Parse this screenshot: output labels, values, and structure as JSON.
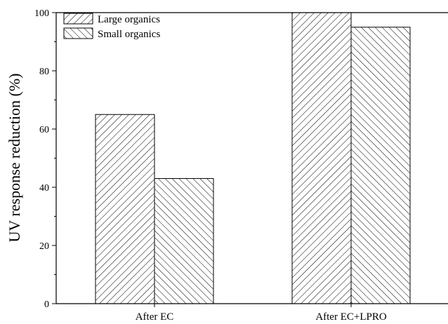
{
  "chart_data": {
    "type": "bar",
    "title": "",
    "xlabel": "",
    "ylabel": "UV response reduction (%)",
    "categories": [
      "After EC",
      "After EC+LPRO"
    ],
    "series": [
      {
        "name": "Large organics",
        "values": [
          65,
          100
        ],
        "hatch": "forward-diagonal"
      },
      {
        "name": "Small organics",
        "values": [
          43,
          95
        ],
        "hatch": "backward-diagonal"
      }
    ],
    "ylim": [
      0,
      100
    ],
    "yticks": [
      0,
      20,
      40,
      60,
      80,
      100
    ],
    "grid": false,
    "legend": "top-left",
    "colors": {
      "bar_fill": "#ffffff",
      "hatch": "#000000",
      "axis": "#000000"
    }
  }
}
